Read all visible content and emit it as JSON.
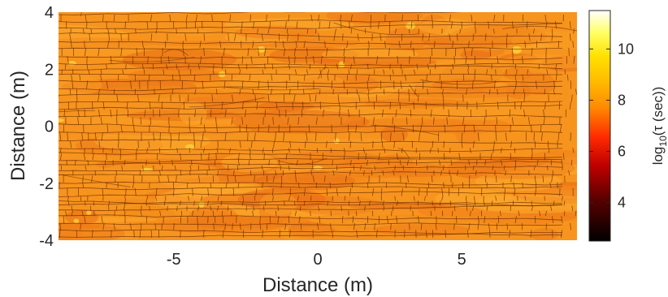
{
  "chart_data": {
    "type": "heatmap",
    "title": "",
    "xlabel": "Distance (m)",
    "ylabel": "Distance (m)",
    "xlim": [
      -9,
      9
    ],
    "ylim": [
      -4,
      4
    ],
    "x_ticks": [
      -5,
      0,
      5
    ],
    "y_ticks": [
      -4,
      -2,
      0,
      2,
      4
    ],
    "colorbar": {
      "label": "log10(τ (sec))",
      "label_parts": {
        "pre": "log",
        "sub": "10",
        "post": "(τ (sec))"
      },
      "colormap": "hot",
      "range": [
        2.5,
        11.5
      ],
      "ticks": [
        4,
        6,
        8,
        10
      ]
    },
    "field": {
      "typical_value": 7.7,
      "value_range": [
        5.5,
        11.5
      ],
      "description_of_pattern": "fractured mesh: dense network of thin dark crack lines on a near-uniform orange field"
    }
  }
}
